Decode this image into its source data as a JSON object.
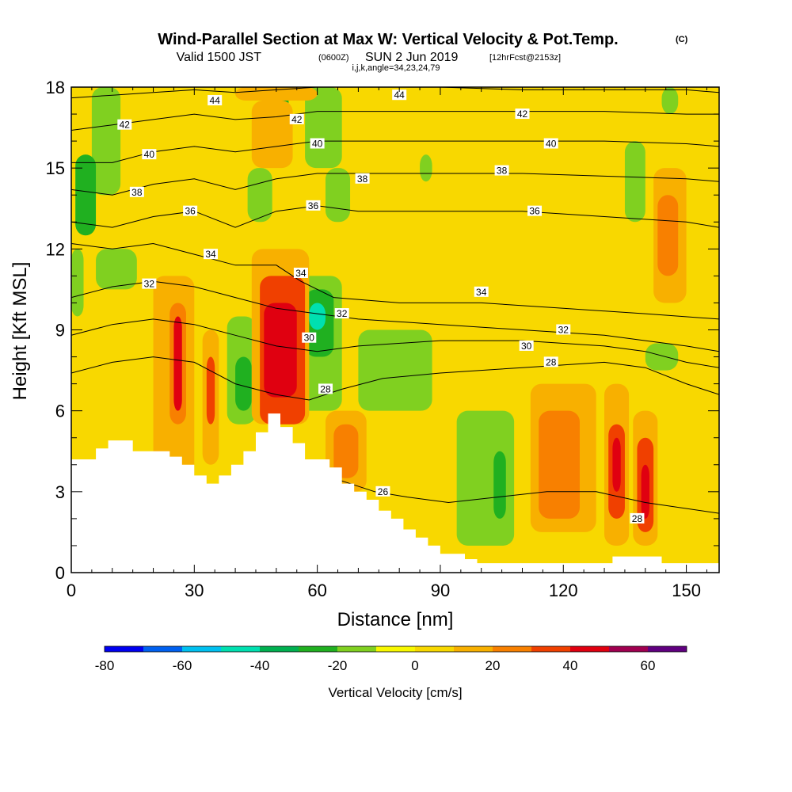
{
  "title": {
    "main": "Wind-Parallel Section at Max W: Vertical Velocity & Pot.Temp.",
    "copyright": "(C)",
    "valid_prefix": "Valid 1500 JST",
    "valid_utc": "(0600Z)",
    "valid_date": "SUN 2 Jun 2019",
    "forecast": "[12hrFcst@2153z]",
    "grid_info": "i,j,k,angle=34,23,24,79"
  },
  "chart_data": {
    "type": "heatmap",
    "xlabel": "Distance [nm]",
    "ylabel": "Height [Kft MSL]",
    "xlim": [
      0,
      158
    ],
    "ylim": [
      0,
      18
    ],
    "x_ticks": [
      0,
      30,
      60,
      90,
      120,
      150
    ],
    "y_ticks": [
      0,
      3,
      6,
      9,
      12,
      15,
      18
    ],
    "colorbar": {
      "title": "Vertical Velocity [cm/s]",
      "levels": [
        -80,
        -70,
        -60,
        -50,
        -40,
        -30,
        -20,
        -10,
        0,
        10,
        20,
        30,
        40,
        50,
        60,
        70
      ],
      "tick_labels": [
        "-80",
        "-60",
        "-40",
        "-20",
        "0",
        "20",
        "40",
        "60"
      ],
      "colors": [
        "#0000f0",
        "#0060f0",
        "#00c0f0",
        "#00e0b0",
        "#00b050",
        "#20b020",
        "#80d020",
        "#f8f800",
        "#f8d800",
        "#f8b000",
        "#f88000",
        "#f04000",
        "#e00010",
        "#a00050",
        "#600080"
      ]
    },
    "velocity_cells": [
      {
        "x0": 0,
        "x1": 158,
        "y0": 0,
        "y1": 18,
        "w": 2
      },
      {
        "x0": 0,
        "x1": 6,
        "y0": 0,
        "y1": 18,
        "w": 0
      },
      {
        "x0": 18,
        "x1": 40,
        "y0": 12.5,
        "y1": 18,
        "w": 5
      },
      {
        "x0": 60,
        "x1": 158,
        "y0": 9.5,
        "y1": 14,
        "w": 5
      },
      {
        "x0": 0,
        "x1": 12,
        "y0": 4.5,
        "y1": 9,
        "w": 5
      },
      {
        "x0": 60,
        "x1": 95,
        "y0": 4,
        "y1": 8,
        "w": 5
      },
      {
        "x0": 100,
        "x1": 158,
        "y0": 0.5,
        "y1": 8.5,
        "w": 5
      },
      {
        "x0": 5,
        "x1": 12,
        "y0": 14,
        "y1": 18,
        "w": -12
      },
      {
        "x0": 1,
        "x1": 6,
        "y0": 12.5,
        "y1": 15.5,
        "w": -25
      },
      {
        "x0": 0,
        "x1": 3,
        "y0": 9.5,
        "y1": 12,
        "w": -12
      },
      {
        "x0": 6,
        "x1": 16,
        "y0": 10.5,
        "y1": 12,
        "w": -12
      },
      {
        "x0": 43,
        "x1": 49,
        "y0": 13,
        "y1": 15,
        "w": -12
      },
      {
        "x0": 48,
        "x1": 53,
        "y0": 16,
        "y1": 18,
        "w": -25
      },
      {
        "x0": 57,
        "x1": 66,
        "y0": 15,
        "y1": 18,
        "w": -12
      },
      {
        "x0": 62,
        "x1": 68,
        "y0": 13,
        "y1": 15,
        "w": -12
      },
      {
        "x0": 85,
        "x1": 88,
        "y0": 14.5,
        "y1": 15.5,
        "w": -12
      },
      {
        "x0": 135,
        "x1": 140,
        "y0": 13,
        "y1": 16,
        "w": -12
      },
      {
        "x0": 144,
        "x1": 148,
        "y0": 17,
        "y1": 18,
        "w": -12
      },
      {
        "x0": 38,
        "x1": 45,
        "y0": 5.5,
        "y1": 9.5,
        "w": -12
      },
      {
        "x0": 40,
        "x1": 44,
        "y0": 6,
        "y1": 8,
        "w": -25
      },
      {
        "x0": 22,
        "x1": 24,
        "y0": 6,
        "y1": 9,
        "w": -12
      },
      {
        "x0": 54,
        "x1": 66,
        "y0": 6,
        "y1": 11,
        "w": -12
      },
      {
        "x0": 57,
        "x1": 64,
        "y0": 8,
        "y1": 10.5,
        "w": -25
      },
      {
        "x0": 58,
        "x1": 62,
        "y0": 9,
        "y1": 10,
        "w": -45
      },
      {
        "x0": 70,
        "x1": 88,
        "y0": 6,
        "y1": 9,
        "w": -12
      },
      {
        "x0": 94,
        "x1": 108,
        "y0": 1,
        "y1": 6,
        "w": -12
      },
      {
        "x0": 103,
        "x1": 106,
        "y0": 2,
        "y1": 4.5,
        "w": -25
      },
      {
        "x0": 140,
        "x1": 148,
        "y0": 7.5,
        "y1": 8.5,
        "w": -12
      },
      {
        "x0": 20,
        "x1": 30,
        "y0": 3,
        "y1": 11,
        "w": 15
      },
      {
        "x0": 24,
        "x1": 28,
        "y0": 5.5,
        "y1": 10,
        "w": 25
      },
      {
        "x0": 25,
        "x1": 27,
        "y0": 6,
        "y1": 9.5,
        "w": 45
      },
      {
        "x0": 32,
        "x1": 36,
        "y0": 4,
        "y1": 9,
        "w": 15
      },
      {
        "x0": 33,
        "x1": 35,
        "y0": 5.5,
        "y1": 8,
        "w": 35
      },
      {
        "x0": 44,
        "x1": 58,
        "y0": 5.5,
        "y1": 12,
        "w": 15
      },
      {
        "x0": 46,
        "x1": 57,
        "y0": 5.5,
        "y1": 11,
        "w": 35
      },
      {
        "x0": 47,
        "x1": 55,
        "y0": 6.5,
        "y1": 10,
        "w": 45
      },
      {
        "x0": 62,
        "x1": 72,
        "y0": 3,
        "y1": 6,
        "w": 15
      },
      {
        "x0": 64,
        "x1": 70,
        "y0": 3.5,
        "y1": 5.5,
        "w": 25
      },
      {
        "x0": 112,
        "x1": 128,
        "y0": 1.5,
        "y1": 7,
        "w": 15
      },
      {
        "x0": 114,
        "x1": 124,
        "y0": 2,
        "y1": 6,
        "w": 25
      },
      {
        "x0": 130,
        "x1": 136,
        "y0": 1,
        "y1": 7,
        "w": 15
      },
      {
        "x0": 131,
        "x1": 135,
        "y0": 2,
        "y1": 5.5,
        "w": 30
      },
      {
        "x0": 132,
        "x1": 134,
        "y0": 3,
        "y1": 5,
        "w": 45
      },
      {
        "x0": 137,
        "x1": 143,
        "y0": 1,
        "y1": 6,
        "w": 15
      },
      {
        "x0": 138,
        "x1": 142,
        "y0": 1.5,
        "y1": 5,
        "w": 30
      },
      {
        "x0": 139,
        "x1": 141,
        "y0": 2,
        "y1": 4,
        "w": 45
      },
      {
        "x0": 142,
        "x1": 150,
        "y0": 10,
        "y1": 15,
        "w": 15
      },
      {
        "x0": 143,
        "x1": 148,
        "y0": 11,
        "y1": 14,
        "w": 25
      },
      {
        "x0": 44,
        "x1": 54,
        "y0": 15,
        "y1": 17.5,
        "w": 15
      },
      {
        "x0": 40,
        "x1": 60,
        "y0": 17.5,
        "y1": 18,
        "w": 15
      }
    ],
    "terrain": {
      "x": [
        0,
        6,
        6,
        9,
        9,
        15,
        15,
        24,
        24,
        27,
        27,
        30,
        30,
        33,
        33,
        36,
        36,
        39,
        39,
        42,
        42,
        45,
        45,
        48,
        48,
        51,
        51,
        54,
        54,
        57,
        57,
        60,
        60,
        63,
        63,
        66,
        66,
        69,
        69,
        72,
        72,
        75,
        75,
        78,
        78,
        81,
        81,
        84,
        84,
        87,
        87,
        90,
        90,
        96,
        96,
        99,
        99,
        126,
        126,
        132,
        132,
        135,
        135,
        144,
        144,
        158
      ],
      "y": [
        4.2,
        4.2,
        4.6,
        4.6,
        4.9,
        4.9,
        4.5,
        4.5,
        4.3,
        4.3,
        4.0,
        4.0,
        3.6,
        3.6,
        3.3,
        3.3,
        3.6,
        3.6,
        4.0,
        4.0,
        4.5,
        4.5,
        5.2,
        5.2,
        5.9,
        5.9,
        5.4,
        5.4,
        4.8,
        4.8,
        4.2,
        4.2,
        4.2,
        4.2,
        3.9,
        3.9,
        3.3,
        3.3,
        3.0,
        3.0,
        2.7,
        2.7,
        2.3,
        2.3,
        2.0,
        2.0,
        1.6,
        1.6,
        1.3,
        1.3,
        1.0,
        1.0,
        0.7,
        0.7,
        0.5,
        0.5,
        0.35,
        0.35,
        0.35,
        0.35,
        0.6,
        0.6,
        0.6,
        0.6,
        0.35,
        0.35
      ]
    },
    "theta_contours": [
      {
        "level": 26,
        "x": [
          44,
          50,
          58,
          66,
          74,
          82,
          92,
          104,
          116,
          128,
          140,
          158
        ],
        "y": [
          3.0,
          3.4,
          3.6,
          3.4,
          3.0,
          2.8,
          2.6,
          2.8,
          3.0,
          3.0,
          2.6,
          2.2
        ]
      },
      {
        "level": 28,
        "x": [
          0,
          10,
          20,
          30,
          40,
          50,
          58,
          66,
          76,
          90,
          110,
          130,
          140,
          150,
          158
        ],
        "y": [
          7.4,
          7.8,
          8.0,
          7.8,
          7.0,
          6.6,
          6.4,
          6.8,
          7.2,
          7.4,
          7.6,
          7.8,
          7.6,
          7.0,
          6.6
        ]
      },
      {
        "level": 30,
        "x": [
          0,
          10,
          20,
          30,
          40,
          50,
          60,
          70,
          90,
          110,
          130,
          140,
          150,
          158
        ],
        "y": [
          8.8,
          9.2,
          9.4,
          9.2,
          8.8,
          8.4,
          8.2,
          8.4,
          8.6,
          8.6,
          8.4,
          8.2,
          7.8,
          7.6
        ]
      },
      {
        "level": 32,
        "x": [
          0,
          10,
          20,
          30,
          40,
          50,
          60,
          70,
          90,
          110,
          130,
          140,
          150,
          158
        ],
        "y": [
          10.2,
          10.6,
          10.8,
          10.6,
          10.2,
          9.8,
          9.6,
          9.4,
          9.2,
          9.0,
          8.8,
          8.6,
          8.4,
          8.2
        ]
      },
      {
        "level": 34,
        "x": [
          0,
          10,
          20,
          30,
          40,
          50,
          56,
          64,
          80,
          100,
          120,
          140,
          158
        ],
        "y": [
          12.2,
          12.0,
          12.2,
          11.8,
          11.4,
          11.4,
          10.8,
          10.2,
          10.0,
          10.0,
          9.8,
          9.6,
          9.4
        ]
      },
      {
        "level": 36,
        "x": [
          0,
          10,
          20,
          30,
          40,
          50,
          60,
          70,
          90,
          110,
          130,
          150,
          158
        ],
        "y": [
          13.0,
          12.8,
          13.2,
          13.4,
          12.8,
          13.4,
          13.6,
          13.4,
          13.4,
          13.4,
          13.2,
          13.0,
          12.8
        ]
      },
      {
        "level": 38,
        "x": [
          0,
          10,
          20,
          30,
          40,
          50,
          60,
          70,
          90,
          110,
          130,
          150,
          158
        ],
        "y": [
          14.2,
          14.0,
          14.4,
          14.6,
          14.2,
          14.6,
          14.8,
          14.8,
          14.8,
          14.8,
          14.7,
          14.6,
          14.5
        ]
      },
      {
        "level": 40,
        "x": [
          0,
          10,
          20,
          30,
          40,
          50,
          60,
          70,
          90,
          110,
          130,
          150,
          158
        ],
        "y": [
          15.2,
          15.2,
          15.6,
          15.8,
          15.6,
          15.8,
          16.0,
          16.0,
          16.0,
          16.0,
          16.0,
          15.9,
          15.8
        ]
      },
      {
        "level": 42,
        "x": [
          0,
          10,
          20,
          30,
          40,
          50,
          60,
          70,
          90,
          110,
          130,
          150,
          158
        ],
        "y": [
          16.4,
          16.6,
          16.8,
          17.0,
          16.8,
          16.9,
          17.1,
          17.1,
          17.1,
          17.1,
          17.1,
          17.0,
          17.0
        ]
      },
      {
        "level": 44,
        "x": [
          0,
          10,
          20,
          30,
          40,
          50,
          60,
          70,
          90,
          110,
          130,
          150,
          158
        ],
        "y": [
          17.6,
          17.7,
          17.8,
          17.9,
          17.8,
          17.9,
          18.0,
          18.0,
          18.0,
          17.9,
          17.9,
          17.9,
          17.8
        ]
      }
    ],
    "contour_labels": [
      {
        "text": "44",
        "x": 35,
        "y": 17.5
      },
      {
        "text": "44",
        "x": 80,
        "y": 17.7
      },
      {
        "text": "42",
        "x": 13,
        "y": 16.6
      },
      {
        "text": "42",
        "x": 55,
        "y": 16.8
      },
      {
        "text": "42",
        "x": 110,
        "y": 17.0
      },
      {
        "text": "40",
        "x": 19,
        "y": 15.5
      },
      {
        "text": "40",
        "x": 60,
        "y": 15.9
      },
      {
        "text": "40",
        "x": 117,
        "y": 15.9
      },
      {
        "text": "38",
        "x": 16,
        "y": 14.1
      },
      {
        "text": "38",
        "x": 71,
        "y": 14.6
      },
      {
        "text": "38",
        "x": 105,
        "y": 14.9
      },
      {
        "text": "36",
        "x": 29,
        "y": 13.4
      },
      {
        "text": "36",
        "x": 59,
        "y": 13.6
      },
      {
        "text": "36",
        "x": 113,
        "y": 13.4
      },
      {
        "text": "34",
        "x": 34,
        "y": 11.8
      },
      {
        "text": "34",
        "x": 56,
        "y": 11.1
      },
      {
        "text": "34",
        "x": 100,
        "y": 10.4
      },
      {
        "text": "32",
        "x": 19,
        "y": 10.7
      },
      {
        "text": "32",
        "x": 66,
        "y": 9.6
      },
      {
        "text": "32",
        "x": 120,
        "y": 9.0
      },
      {
        "text": "30",
        "x": 58,
        "y": 8.7
      },
      {
        "text": "30",
        "x": 111,
        "y": 8.4
      },
      {
        "text": "28",
        "x": 62,
        "y": 6.8
      },
      {
        "text": "28",
        "x": 117,
        "y": 7.8
      },
      {
        "text": "26",
        "x": 76,
        "y": 3.0
      },
      {
        "text": "28",
        "x": 138,
        "y": 2.0
      }
    ]
  }
}
